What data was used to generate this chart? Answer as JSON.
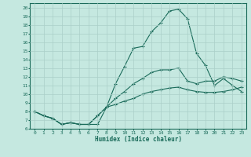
{
  "xlabel": "Humidex (Indice chaleur)",
  "xlim": [
    -0.5,
    23.5
  ],
  "ylim": [
    6,
    20.5
  ],
  "xticks": [
    0,
    1,
    2,
    3,
    4,
    5,
    6,
    7,
    8,
    9,
    10,
    11,
    12,
    13,
    14,
    15,
    16,
    17,
    18,
    19,
    20,
    21,
    22,
    23
  ],
  "yticks": [
    6,
    7,
    8,
    9,
    10,
    11,
    12,
    13,
    14,
    15,
    16,
    17,
    18,
    19,
    20
  ],
  "bg_color": "#c5e8e0",
  "line_color": "#1a6b5a",
  "grid_color": "#aacfc8",
  "line1_x": [
    0,
    1,
    2,
    3,
    4,
    5,
    6,
    7,
    8,
    9,
    10,
    11,
    12,
    13,
    14,
    15,
    16,
    17,
    18,
    19,
    20,
    21,
    22,
    23
  ],
  "line1_y": [
    8.0,
    7.5,
    7.2,
    6.5,
    6.7,
    6.5,
    6.5,
    6.5,
    8.5,
    11.2,
    13.2,
    15.3,
    15.5,
    17.2,
    18.2,
    19.6,
    19.8,
    18.7,
    14.7,
    13.3,
    11.0,
    11.8,
    11.0,
    10.3
  ],
  "line2_x": [
    0,
    1,
    2,
    3,
    4,
    5,
    6,
    7,
    8,
    9,
    10,
    11,
    12,
    13,
    14,
    15,
    16,
    17,
    18,
    19,
    20,
    21,
    22,
    23
  ],
  "line2_y": [
    8.0,
    7.5,
    7.2,
    6.5,
    6.7,
    6.5,
    6.5,
    7.5,
    8.5,
    9.5,
    10.3,
    11.2,
    11.8,
    12.5,
    12.8,
    12.8,
    13.0,
    11.5,
    11.2,
    11.5,
    11.5,
    12.0,
    11.8,
    11.5
  ],
  "line3_x": [
    0,
    1,
    2,
    3,
    4,
    5,
    6,
    7,
    8,
    9,
    10,
    11,
    12,
    13,
    14,
    15,
    16,
    17,
    18,
    19,
    20,
    21,
    22,
    23
  ],
  "line3_y": [
    8.0,
    7.5,
    7.2,
    6.5,
    6.7,
    6.5,
    6.5,
    7.5,
    8.5,
    8.8,
    9.2,
    9.5,
    10.0,
    10.3,
    10.5,
    10.7,
    10.8,
    10.5,
    10.3,
    10.2,
    10.2,
    10.3,
    10.5,
    10.8
  ]
}
